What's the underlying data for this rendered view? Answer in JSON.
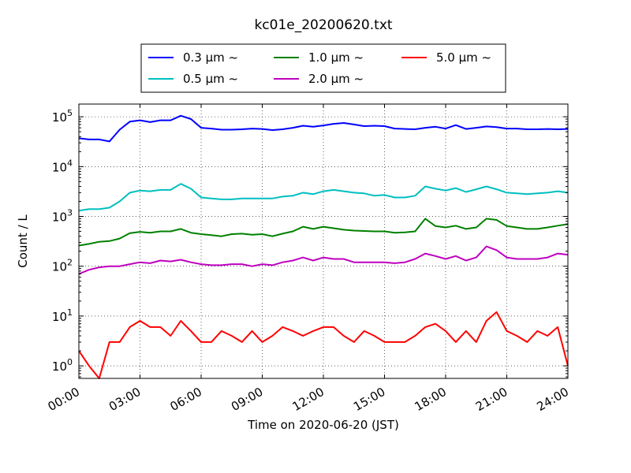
{
  "chart_data": {
    "type": "line",
    "title": "kc01e_20200620.txt",
    "xlabel": "Time on 2020-06-20 (JST)",
    "ylabel": "Count / L",
    "yscale": "log",
    "xlim": [
      0,
      24
    ],
    "ylim": [
      0.56,
      180000
    ],
    "grid": true,
    "legend_position": "top-center",
    "x_ticks": [
      "00:00",
      "03:00",
      "06:00",
      "09:00",
      "12:00",
      "15:00",
      "18:00",
      "21:00",
      "24:00"
    ],
    "y_ticks": [
      {
        "value": 1,
        "base": "10",
        "exp": "0"
      },
      {
        "value": 10,
        "base": "10",
        "exp": "1"
      },
      {
        "value": 100,
        "base": "10",
        "exp": "2"
      },
      {
        "value": 1000,
        "base": "10",
        "exp": "3"
      },
      {
        "value": 10000,
        "base": "10",
        "exp": "4"
      },
      {
        "value": 100000,
        "base": "10",
        "exp": "5"
      }
    ],
    "x": [
      0,
      0.5,
      1,
      1.5,
      2,
      2.5,
      3,
      3.5,
      4,
      4.5,
      5,
      5.5,
      6,
      6.5,
      7,
      7.5,
      8,
      8.5,
      9,
      9.5,
      10,
      10.5,
      11,
      11.5,
      12,
      12.5,
      13,
      13.5,
      14,
      14.5,
      15,
      15.5,
      16,
      16.5,
      17,
      17.5,
      18,
      18.5,
      19,
      19.5,
      20,
      20.5,
      21,
      21.5,
      22,
      22.5,
      23,
      23.5,
      24
    ],
    "series": [
      {
        "name": "0.3 μm ~",
        "color": "#0000ff",
        "values": [
          37000,
          35000,
          35000,
          32000,
          55000,
          80000,
          85000,
          78000,
          85000,
          85000,
          105000,
          90000,
          60000,
          58000,
          55000,
          55000,
          56000,
          58000,
          57000,
          54000,
          56000,
          60000,
          66000,
          63000,
          67000,
          72000,
          75000,
          70000,
          65000,
          66000,
          65000,
          58000,
          57000,
          56000,
          60000,
          63000,
          58000,
          68000,
          57000,
          60000,
          64000,
          62000,
          58000,
          58000,
          56000,
          56000,
          57000,
          56000,
          57000
        ]
      },
      {
        "name": "0.5 μm ~",
        "color": "#00bfbf",
        "values": [
          1300,
          1400,
          1400,
          1500,
          2000,
          3000,
          3300,
          3200,
          3400,
          3400,
          4500,
          3600,
          2400,
          2300,
          2200,
          2200,
          2300,
          2300,
          2300,
          2300,
          2500,
          2600,
          3000,
          2800,
          3200,
          3400,
          3200,
          3000,
          2900,
          2600,
          2700,
          2400,
          2400,
          2600,
          4000,
          3600,
          3300,
          3700,
          3100,
          3500,
          4000,
          3500,
          3000,
          2900,
          2800,
          2900,
          3000,
          3200,
          3000
        ]
      },
      {
        "name": "1.0 μm ~",
        "color": "#008000",
        "values": [
          260,
          280,
          310,
          320,
          360,
          460,
          490,
          470,
          500,
          500,
          560,
          470,
          440,
          420,
          400,
          440,
          450,
          430,
          440,
          400,
          450,
          500,
          620,
          560,
          620,
          580,
          540,
          520,
          510,
          500,
          500,
          470,
          480,
          500,
          900,
          640,
          600,
          650,
          560,
          600,
          900,
          850,
          640,
          600,
          560,
          560,
          600,
          650,
          700
        ]
      },
      {
        "name": "2.0 μm ~",
        "color": "#bf00bf",
        "values": [
          70,
          85,
          95,
          100,
          100,
          110,
          120,
          115,
          130,
          125,
          135,
          120,
          110,
          105,
          105,
          110,
          110,
          100,
          110,
          105,
          120,
          130,
          150,
          130,
          150,
          140,
          140,
          120,
          120,
          120,
          120,
          115,
          120,
          140,
          180,
          160,
          140,
          160,
          130,
          150,
          250,
          210,
          150,
          140,
          140,
          140,
          150,
          180,
          170
        ]
      },
      {
        "name": "5.0 μm ~",
        "color": "#ff0000",
        "values": [
          2,
          1,
          0.5,
          3,
          3,
          6,
          8,
          6,
          6,
          4,
          8,
          5,
          3,
          3,
          5,
          4,
          3,
          5,
          3,
          4,
          6,
          5,
          4,
          5,
          6,
          6,
          4,
          3,
          5,
          4,
          3,
          3,
          3,
          4,
          6,
          7,
          5,
          3,
          5,
          3,
          8,
          12,
          5,
          4,
          3,
          5,
          4,
          6,
          1
        ]
      }
    ]
  }
}
